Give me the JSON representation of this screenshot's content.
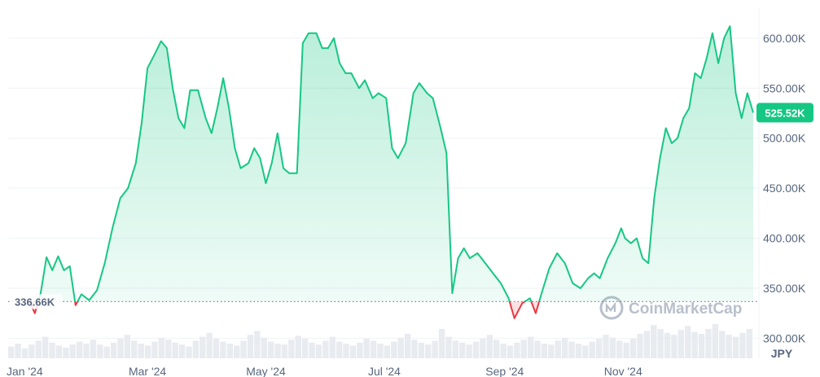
{
  "chart_data": {
    "type": "area",
    "currency": "JPY",
    "watermark": "CoinMarketCap",
    "ylim": [
      280000,
      630000
    ],
    "y_ticks": [
      {
        "value": 300000,
        "label": "300.00K"
      },
      {
        "value": 350000,
        "label": "350.00K"
      },
      {
        "value": 400000,
        "label": "400.00K"
      },
      {
        "value": 450000,
        "label": "450.00K"
      },
      {
        "value": 500000,
        "label": "500.00K"
      },
      {
        "value": 550000,
        "label": "550.00K"
      },
      {
        "value": 600000,
        "label": "600.00K"
      }
    ],
    "x_ticks": [
      {
        "date": "2024-01-01",
        "label": "Jan '24"
      },
      {
        "date": "2024-03-01",
        "label": "Mar '24"
      },
      {
        "date": "2024-05-01",
        "label": "May '24"
      },
      {
        "date": "2024-07-01",
        "label": "Jul '24"
      },
      {
        "date": "2024-09-01",
        "label": "Sep '24"
      },
      {
        "date": "2024-11-01",
        "label": "Nov '24"
      }
    ],
    "baseline": {
      "value": 336660,
      "label": "336.66K"
    },
    "current": {
      "value": 525520,
      "label": "525.52K"
    },
    "colors": {
      "up": "#16c784",
      "down": "#ea3943",
      "current_badge": "#16c784"
    },
    "series": [
      {
        "points": [
          [
            "2023-12-31",
            338000
          ],
          [
            "2024-01-03",
            325000
          ],
          [
            "2024-01-06",
            345000
          ],
          [
            "2024-01-09",
            381000
          ],
          [
            "2024-01-12",
            368000
          ],
          [
            "2024-01-15",
            382000
          ],
          [
            "2024-01-18",
            368000
          ],
          [
            "2024-01-21",
            372000
          ],
          [
            "2024-01-24",
            333000
          ],
          [
            "2024-01-27",
            344000
          ],
          [
            "2024-01-31",
            338000
          ],
          [
            "2024-02-04",
            348000
          ],
          [
            "2024-02-08",
            375000
          ],
          [
            "2024-02-12",
            410000
          ],
          [
            "2024-02-16",
            440000
          ],
          [
            "2024-02-20",
            450000
          ],
          [
            "2024-02-24",
            475000
          ],
          [
            "2024-02-27",
            515000
          ],
          [
            "2024-03-01",
            570000
          ],
          [
            "2024-03-05",
            585000
          ],
          [
            "2024-03-08",
            597000
          ],
          [
            "2024-03-11",
            590000
          ],
          [
            "2024-03-14",
            550000
          ],
          [
            "2024-03-17",
            520000
          ],
          [
            "2024-03-20",
            510000
          ],
          [
            "2024-03-23",
            548000
          ],
          [
            "2024-03-27",
            548000
          ],
          [
            "2024-03-31",
            520000
          ],
          [
            "2024-04-03",
            505000
          ],
          [
            "2024-04-06",
            530000
          ],
          [
            "2024-04-09",
            560000
          ],
          [
            "2024-04-12",
            530000
          ],
          [
            "2024-04-15",
            490000
          ],
          [
            "2024-04-18",
            470000
          ],
          [
            "2024-04-22",
            475000
          ],
          [
            "2024-04-25",
            490000
          ],
          [
            "2024-04-28",
            480000
          ],
          [
            "2024-05-01",
            455000
          ],
          [
            "2024-05-04",
            475000
          ],
          [
            "2024-05-07",
            505000
          ],
          [
            "2024-05-10",
            470000
          ],
          [
            "2024-05-13",
            465000
          ],
          [
            "2024-05-17",
            465000
          ],
          [
            "2024-05-20",
            595000
          ],
          [
            "2024-05-23",
            605000
          ],
          [
            "2024-05-27",
            605000
          ],
          [
            "2024-05-30",
            590000
          ],
          [
            "2024-06-02",
            590000
          ],
          [
            "2024-06-05",
            600000
          ],
          [
            "2024-06-08",
            575000
          ],
          [
            "2024-06-11",
            565000
          ],
          [
            "2024-06-14",
            565000
          ],
          [
            "2024-06-18",
            550000
          ],
          [
            "2024-06-21",
            558000
          ],
          [
            "2024-06-25",
            540000
          ],
          [
            "2024-06-28",
            545000
          ],
          [
            "2024-07-02",
            540000
          ],
          [
            "2024-07-05",
            490000
          ],
          [
            "2024-07-08",
            480000
          ],
          [
            "2024-07-12",
            495000
          ],
          [
            "2024-07-16",
            545000
          ],
          [
            "2024-07-19",
            555000
          ],
          [
            "2024-07-23",
            545000
          ],
          [
            "2024-07-26",
            540000
          ],
          [
            "2024-07-30",
            510000
          ],
          [
            "2024-08-02",
            485000
          ],
          [
            "2024-08-05",
            345000
          ],
          [
            "2024-08-08",
            380000
          ],
          [
            "2024-08-11",
            390000
          ],
          [
            "2024-08-14",
            380000
          ],
          [
            "2024-08-18",
            385000
          ],
          [
            "2024-08-22",
            375000
          ],
          [
            "2024-08-26",
            365000
          ],
          [
            "2024-08-30",
            355000
          ],
          [
            "2024-09-03",
            340000
          ],
          [
            "2024-09-06",
            320000
          ],
          [
            "2024-09-10",
            335000
          ],
          [
            "2024-09-14",
            340000
          ],
          [
            "2024-09-17",
            325000
          ],
          [
            "2024-09-20",
            345000
          ],
          [
            "2024-09-24",
            370000
          ],
          [
            "2024-09-28",
            385000
          ],
          [
            "2024-10-02",
            375000
          ],
          [
            "2024-10-06",
            355000
          ],
          [
            "2024-10-10",
            350000
          ],
          [
            "2024-10-14",
            360000
          ],
          [
            "2024-10-17",
            365000
          ],
          [
            "2024-10-20",
            360000
          ],
          [
            "2024-10-24",
            380000
          ],
          [
            "2024-10-28",
            395000
          ],
          [
            "2024-10-31",
            410000
          ],
          [
            "2024-11-02",
            400000
          ],
          [
            "2024-11-05",
            395000
          ],
          [
            "2024-11-08",
            400000
          ],
          [
            "2024-11-11",
            380000
          ],
          [
            "2024-11-14",
            375000
          ],
          [
            "2024-11-17",
            440000
          ],
          [
            "2024-11-20",
            480000
          ],
          [
            "2024-11-23",
            510000
          ],
          [
            "2024-11-26",
            495000
          ],
          [
            "2024-11-29",
            500000
          ],
          [
            "2024-12-02",
            520000
          ],
          [
            "2024-12-05",
            530000
          ],
          [
            "2024-12-08",
            565000
          ],
          [
            "2024-12-11",
            560000
          ],
          [
            "2024-12-14",
            580000
          ],
          [
            "2024-12-17",
            605000
          ],
          [
            "2024-12-20",
            575000
          ],
          [
            "2024-12-23",
            600000
          ],
          [
            "2024-12-26",
            612000
          ],
          [
            "2024-12-29",
            545000
          ],
          [
            "2025-01-01",
            520000
          ],
          [
            "2025-01-04",
            545000
          ],
          [
            "2025-01-07",
            525520
          ]
        ]
      }
    ],
    "volume": [
      12,
      15,
      10,
      14,
      18,
      22,
      16,
      13,
      11,
      14,
      17,
      15,
      19,
      14,
      12,
      16,
      20,
      24,
      18,
      15,
      13,
      17,
      21,
      19,
      16,
      14,
      12,
      18,
      22,
      26,
      20,
      17,
      15,
      13,
      18,
      24,
      28,
      21,
      17,
      15,
      14,
      19,
      23,
      20,
      16,
      14,
      18,
      22,
      17,
      15,
      13,
      16,
      20,
      18,
      15,
      13,
      17,
      21,
      25,
      19,
      16,
      14,
      18,
      30,
      22,
      18,
      16,
      14,
      17,
      20,
      24,
      19,
      15,
      13,
      16,
      19,
      22,
      18,
      15,
      14,
      18,
      21,
      17,
      15,
      13,
      17,
      20,
      24,
      21,
      18,
      16,
      20,
      25,
      28,
      34,
      30,
      26,
      24,
      29,
      33,
      27,
      25,
      30,
      35,
      28,
      24,
      22,
      26,
      30
    ]
  }
}
